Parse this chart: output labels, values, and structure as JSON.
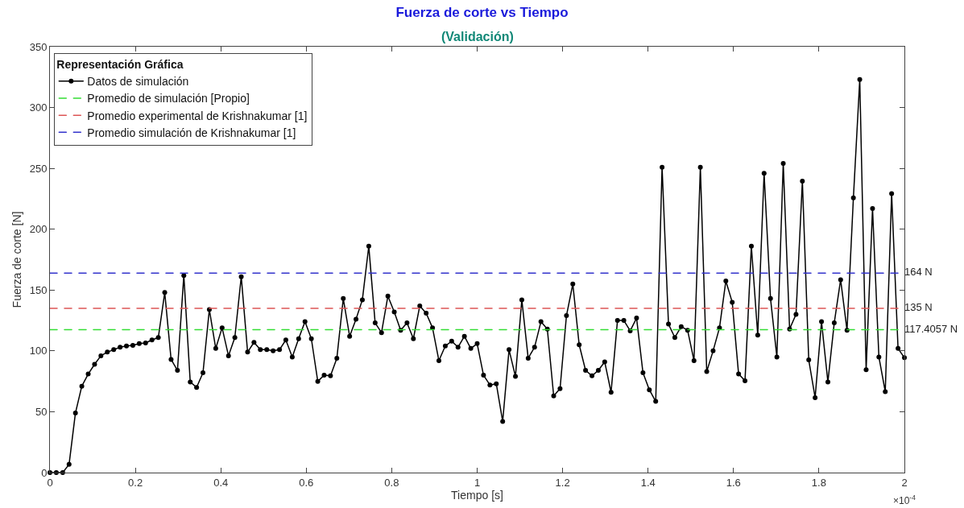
{
  "chart_data": {
    "type": "line",
    "title": "Fuerza de corte vs Tiempo",
    "subtitle": "(Validación)",
    "xlabel": "Tiempo [s]",
    "ylabel": "Fuerza de corte [N]",
    "legend_title": "Representación Gráfica",
    "legend": "top left",
    "xlim": [
      0,
      2
    ],
    "xticks": [
      0,
      0.2,
      0.4,
      0.6,
      0.8,
      1,
      1.2,
      1.4,
      1.6,
      1.8,
      2
    ],
    "ylim": [
      0,
      350
    ],
    "yticks": [
      0,
      50,
      100,
      150,
      200,
      250,
      300,
      350
    ],
    "annotations": [
      "×10$^{-4}$"
    ],
    "series": [
      {
        "name": "Datos de simulación",
        "color": "#000000",
        "marker": "circle",
        "line_style": "solid",
        "x": [
          0,
          0.0149,
          0.0299,
          0.0448,
          0.0597,
          0.0746,
          0.0896,
          0.1045,
          0.1194,
          0.1343,
          0.1493,
          0.1642,
          0.1791,
          0.194,
          0.209,
          0.2239,
          0.2388,
          0.2537,
          0.2687,
          0.2836,
          0.2985,
          0.3134,
          0.3284,
          0.3433,
          0.3582,
          0.3731,
          0.3881,
          0.403,
          0.4179,
          0.4328,
          0.4478,
          0.4627,
          0.4776,
          0.4925,
          0.5075,
          0.5224,
          0.5373,
          0.5522,
          0.5672,
          0.5821,
          0.597,
          0.6119,
          0.6269,
          0.6418,
          0.6567,
          0.6716,
          0.6866,
          0.7015,
          0.7164,
          0.7313,
          0.7463,
          0.7612,
          0.7761,
          0.791,
          0.806,
          0.8209,
          0.8358,
          0.8507,
          0.8657,
          0.8806,
          0.8955,
          0.9104,
          0.9254,
          0.9403,
          0.9552,
          0.9701,
          0.9851,
          1.0,
          1.0149,
          1.0299,
          1.0448,
          1.0597,
          1.0746,
          1.0896,
          1.1045,
          1.1194,
          1.1343,
          1.1493,
          1.1642,
          1.1791,
          1.194,
          1.209,
          1.2239,
          1.2388,
          1.2537,
          1.2687,
          1.2836,
          1.2985,
          1.3134,
          1.3284,
          1.3433,
          1.3582,
          1.3731,
          1.3881,
          1.403,
          1.4179,
          1.4328,
          1.4478,
          1.4627,
          1.4776,
          1.4925,
          1.5075,
          1.5224,
          1.5373,
          1.5522,
          1.5672,
          1.5821,
          1.597,
          1.6119,
          1.6269,
          1.6418,
          1.6567,
          1.6716,
          1.6866,
          1.7015,
          1.7164,
          1.7313,
          1.7463,
          1.7612,
          1.7761,
          1.791,
          1.806,
          1.8209,
          1.8358,
          1.8507,
          1.8657,
          1.8806,
          1.8955,
          1.9104,
          1.9254,
          1.9403,
          1.9552,
          1.9701,
          1.9851,
          2.0
        ],
        "values": [
          0,
          0,
          0,
          6.7,
          49,
          71,
          81,
          89,
          96,
          99,
          101,
          103,
          104,
          104.5,
          106,
          106.5,
          109,
          111,
          148,
          93,
          84,
          162,
          74.5,
          70,
          82,
          134,
          102,
          119,
          96,
          111,
          161,
          99,
          107,
          101,
          101,
          100,
          101,
          109,
          95,
          110,
          124,
          110,
          75,
          80,
          79.5,
          94,
          143,
          112,
          126,
          142,
          186,
          123,
          115,
          145,
          132,
          117,
          123,
          110,
          137,
          131,
          119,
          92,
          104,
          108,
          103,
          112,
          102,
          106,
          80,
          72,
          73,
          42,
          101,
          79,
          142,
          94,
          103,
          124,
          118,
          63,
          69,
          129,
          155,
          105,
          84,
          79.5,
          84,
          91,
          66,
          125,
          125,
          116.5,
          127,
          82,
          68,
          58.5,
          251,
          122,
          111,
          120,
          117,
          92,
          251,
          83,
          100,
          119,
          157.5,
          140,
          81,
          75.5,
          186,
          113,
          246,
          143,
          95,
          254,
          118,
          130,
          239.5,
          92.6,
          61.6,
          124,
          74.5,
          123,
          158.5,
          117,
          225.7,
          323,
          84.6,
          217,
          95,
          66.5,
          229.3,
          102,
          94.4
        ]
      },
      {
        "name": "Promedio de simulación [Propio]",
        "color": "#33dd33",
        "marker": "none",
        "line_style": "dashed",
        "x": [
          0,
          2
        ],
        "values": [
          117.4057,
          117.4057
        ],
        "value_labels": [
          null,
          "117.4057 N"
        ]
      },
      {
        "name": "Promedio experimental de Krishnakumar [1]",
        "color": "#dd5555",
        "marker": "none",
        "line_style": "dashed",
        "x": [
          0,
          2
        ],
        "values": [
          135,
          135
        ],
        "value_labels": [
          null,
          "135 N"
        ]
      },
      {
        "name": "Promedio simulación de Krishnakumar [1]",
        "color": "#3333cc",
        "marker": "none",
        "line_style": "dashed",
        "x": [
          0,
          2
        ],
        "values": [
          164,
          164
        ],
        "value_labels": [
          null,
          "164 N"
        ]
      }
    ]
  }
}
